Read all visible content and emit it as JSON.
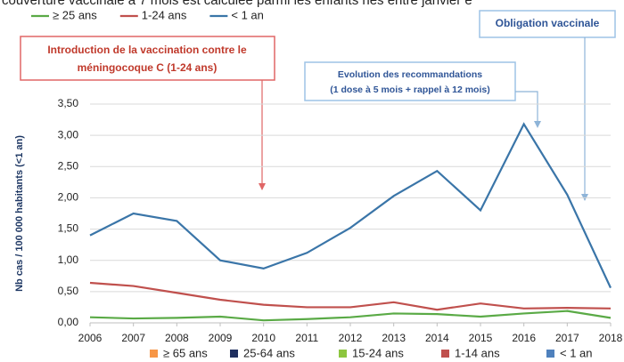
{
  "chart_data": {
    "type": "line",
    "note": "couverture vaccinale à 7 mois est calculée parmi les enfants nés entre janvier e",
    "y_label": "Nb cas / 100 000 habitants (<1 an)",
    "x": [
      2006,
      2007,
      2008,
      2009,
      2010,
      2011,
      2012,
      2013,
      2014,
      2015,
      2016,
      2017,
      2018
    ],
    "xlim": [
      2006,
      2018
    ],
    "xticks": [
      2006,
      2007,
      2008,
      2009,
      2010,
      2011,
      2012,
      2013,
      2014,
      2015,
      2016,
      2017,
      2018
    ],
    "ylim": [
      0,
      3.5
    ],
    "yticks": [
      {
        "value": 0,
        "label": "0,00"
      },
      {
        "value": 0.5,
        "label": "0,50"
      },
      {
        "value": 1,
        "label": "1,00"
      },
      {
        "value": 1.5,
        "label": "1,50"
      },
      {
        "value": 2,
        "label": "2,00"
      },
      {
        "value": 2.5,
        "label": "2,50"
      },
      {
        "value": 3,
        "label": "3,00"
      },
      {
        "value": 3.5,
        "label": "3,50"
      }
    ],
    "grid": true,
    "legend": "top",
    "series": [
      {
        "name": "≥ 25 ans",
        "color": "#5aaa46",
        "values": [
          0.09,
          0.07,
          0.08,
          0.1,
          0.04,
          0.06,
          0.09,
          0.15,
          0.14,
          0.1,
          0.15,
          0.19,
          0.08
        ]
      },
      {
        "name": "1-24 ans",
        "color": "#c0504d",
        "values": [
          0.64,
          0.59,
          0.48,
          0.37,
          0.29,
          0.25,
          0.25,
          0.33,
          0.21,
          0.31,
          0.23,
          0.24,
          0.23
        ]
      },
      {
        "name": "< 1 an",
        "color": "#3a75a8",
        "values": [
          1.4,
          1.75,
          1.63,
          1.0,
          0.87,
          1.12,
          1.52,
          2.03,
          2.43,
          1.8,
          3.18,
          2.05,
          0.56
        ]
      }
    ],
    "bottom_legend": [
      {
        "name": "≥ 65 ans",
        "color": "#f79646"
      },
      {
        "name": "25-64 ans",
        "color": "#1f2f5f"
      },
      {
        "name": "15-24 ans",
        "color": "#8dc63f"
      },
      {
        "name": "1-14 ans",
        "color": "#c0504d"
      },
      {
        "name": "< 1 an",
        "color": "#4f81bd"
      }
    ],
    "annotations": [
      {
        "lines": [
          "Introduction de la vaccination contre le",
          "méningocoque C (1-24 ans)"
        ],
        "color": "#c0392b"
      },
      {
        "lines": [
          "Evolution des recommandations",
          "(1 dose à 5 mois + rappel à 12 mois)"
        ],
        "color": "#2f5597"
      },
      {
        "lines": [
          "Obligation vaccinale"
        ],
        "color": "#2f5597"
      }
    ]
  }
}
